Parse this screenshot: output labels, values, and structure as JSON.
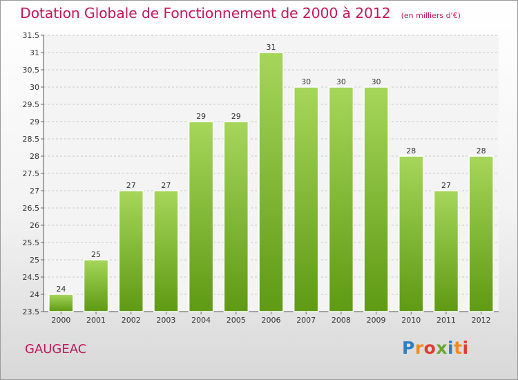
{
  "header": {
    "title": "Dotation Globale de Fonctionnement de 2000 à 2012",
    "subtitle": "(en milliers d'€)"
  },
  "footer": {
    "commune": "GAUGEAC",
    "logo": "Proxiti",
    "logo_colors": [
      "#2e7fc2",
      "#f28c1b",
      "#e53935",
      "#6aa632",
      "#2e7fc2",
      "#f28c1b",
      "#e53935"
    ]
  },
  "colors": {
    "bar_top": "#a6d65a",
    "bar_bottom": "#5e9a13",
    "title": "#c2185b"
  },
  "chart_data": {
    "type": "bar",
    "title": "Dotation Globale de Fonctionnement de 2000 à 2012",
    "subtitle": "(en milliers d'€)",
    "xlabel": "",
    "ylabel": "",
    "categories": [
      "2000",
      "2001",
      "2002",
      "2003",
      "2004",
      "2005",
      "2006",
      "2007",
      "2008",
      "2009",
      "2010",
      "2011",
      "2012"
    ],
    "values": [
      24,
      25,
      27,
      27,
      29,
      29,
      31,
      30,
      30,
      30,
      28,
      27,
      28
    ],
    "ylim": [
      23.5,
      31.5
    ],
    "yticks": [
      "23.5",
      "24",
      "24.5",
      "25",
      "25.5",
      "26",
      "26.5",
      "27",
      "27.5",
      "28",
      "28.5",
      "29",
      "29.5",
      "30",
      "30.5",
      "31",
      "31.5"
    ],
    "grid": true,
    "legend": "none"
  }
}
